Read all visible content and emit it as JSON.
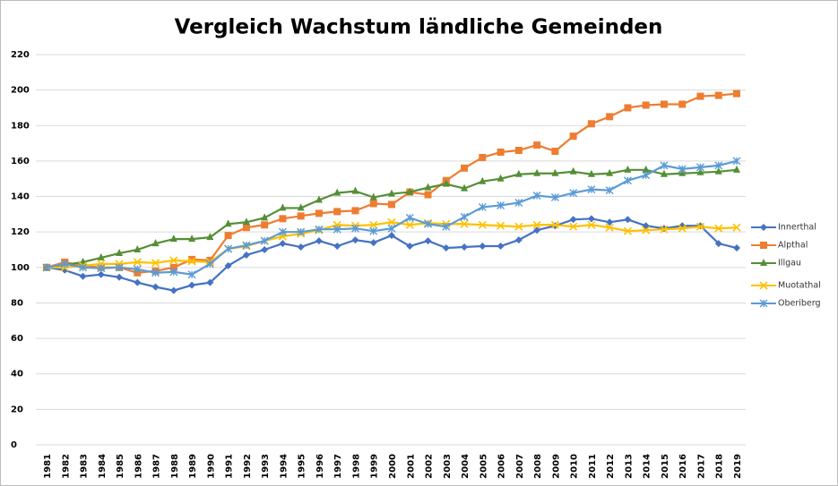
{
  "chart_data": {
    "type": "line",
    "title": "Vergleich Wachstum ländliche Gemeinden",
    "categories": [
      "1981",
      "1982",
      "1983",
      "1984",
      "1985",
      "1986",
      "1987",
      "1988",
      "1989",
      "1990",
      "1991",
      "1992",
      "1993",
      "1994",
      "1995",
      "1996",
      "1997",
      "1998",
      "1999",
      "2000",
      "2001",
      "2002",
      "2003",
      "2004",
      "2005",
      "2006",
      "2007",
      "2008",
      "2009",
      "2010",
      "2011",
      "2012",
      "2013",
      "2014",
      "2015",
      "2016",
      "2017",
      "2018",
      "2019"
    ],
    "series": [
      {
        "name": "Innerthal",
        "color": "#4472c4",
        "marker": "diamond",
        "values": [
          100,
          98.5,
          95,
          96,
          94.5,
          91.5,
          89,
          87,
          90,
          91.5,
          101,
          107,
          110,
          113.5,
          111.5,
          115,
          112,
          115.5,
          114,
          118,
          112,
          115,
          111,
          111.5,
          112,
          112,
          115.5,
          121,
          123.5,
          127,
          127.5,
          125.5,
          127,
          123.5,
          122,
          123.5,
          123.5,
          113.5,
          111
        ]
      },
      {
        "name": "Alpthal",
        "color": "#ed7d31",
        "marker": "square",
        "values": [
          100,
          103,
          101,
          100,
          100,
          97,
          98,
          100,
          104.5,
          104,
          118,
          122.5,
          124,
          127.5,
          129,
          130.5,
          131.5,
          132,
          136,
          135.5,
          142.5,
          141,
          149,
          156,
          162,
          165,
          166,
          169,
          165.5,
          174,
          181,
          185,
          190,
          191.5,
          192,
          192,
          196.5,
          197,
          198
        ]
      },
      {
        "name": "Illgau",
        "color": "#548f35",
        "marker": "triangle",
        "values": [
          100,
          101.5,
          103,
          105.5,
          108,
          110,
          113.5,
          116,
          116,
          117,
          124.5,
          125.5,
          128,
          133.5,
          133.5,
          138,
          142,
          143,
          139.5,
          141.5,
          142.5,
          145,
          147,
          144.5,
          148.5,
          150,
          152.5,
          153,
          153,
          154,
          152.5,
          153,
          155,
          155,
          152.5,
          153,
          153.5,
          154,
          155
        ]
      },
      {
        "name": "Muotathal",
        "color": "#ffc000",
        "marker": "x",
        "values": [
          100,
          100,
          101,
          102,
          102,
          103,
          102.5,
          104,
          103.5,
          103,
          110.5,
          112,
          115,
          117.5,
          119,
          121,
          124,
          123.5,
          124,
          125.5,
          124,
          125,
          124.5,
          124.5,
          124,
          123.5,
          123,
          124,
          124,
          123,
          124,
          122.5,
          120.5,
          121,
          121.5,
          122,
          123,
          122,
          122.5
        ]
      },
      {
        "name": "Oberiberg",
        "color": "#5b9bd5",
        "marker": "star",
        "values": [
          100,
          102,
          100,
          99.5,
          100,
          99,
          97,
          97.5,
          96,
          102,
          110.5,
          112.5,
          115,
          120,
          120,
          121.5,
          121.5,
          122,
          120.5,
          122,
          128,
          124.5,
          123,
          128.5,
          134,
          135,
          136.5,
          140.5,
          139.5,
          142,
          144,
          143.5,
          149,
          152,
          157.5,
          155.5,
          156.5,
          157.5,
          160
        ]
      }
    ],
    "ylim": [
      0,
      220
    ],
    "yticks": [
      0,
      20,
      40,
      60,
      80,
      100,
      120,
      140,
      160,
      180,
      200,
      220
    ],
    "grid": true,
    "legend": "right"
  }
}
